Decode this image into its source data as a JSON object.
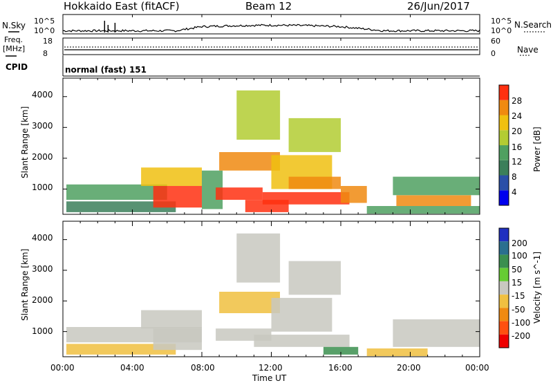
{
  "header": {
    "station": "Hokkaido East (fitACF)",
    "beam": "Beam 12",
    "date": "26/Jun/2017"
  },
  "strip": {
    "nsky_label": "N.Sky",
    "nsky_ticks": [
      "10^5",
      "10^0"
    ],
    "nsearch_label": "N.Search",
    "nsearch_ticks": [
      "10^5",
      "10^0"
    ],
    "freq_label_1": "Freq.",
    "freq_label_2": "[MHz]",
    "freq_ticks": [
      "18",
      "8"
    ],
    "nave_label": "Nave",
    "nave_ticks": [
      "60",
      "0"
    ],
    "cpid_label": "CPID",
    "cpid_value": "normal (fast) 151"
  },
  "chart_data": [
    {
      "type": "heatmap",
      "parameter": "Power",
      "ylabel": "Slant Range [km]",
      "yticks": [
        1000,
        2000,
        3000,
        4000
      ],
      "ylim": [
        180,
        4600
      ],
      "colorbar_label": "Power [dB]",
      "colorbar_ticks": [
        4,
        8,
        12,
        16,
        20,
        24,
        28
      ],
      "colorbar_range": [
        0,
        32
      ],
      "colorbar_colors": [
        "#0000ee",
        "#2a4fa8",
        "#3b7f5a",
        "#4fa060",
        "#b3cc33",
        "#f0c010",
        "#f08a10",
        "#ff3010"
      ],
      "regions": [
        {
          "t": [
            0.2,
            6.0
          ],
          "r": [
            650,
            1150
          ],
          "level": 14
        },
        {
          "t": [
            0.2,
            6.5
          ],
          "r": [
            250,
            600
          ],
          "level": 10
        },
        {
          "t": [
            5.2,
            8.0
          ],
          "r": [
            400,
            1100
          ],
          "level": 28
        },
        {
          "t": [
            4.5,
            8.0
          ],
          "r": [
            1100,
            1700
          ],
          "level": 22
        },
        {
          "t": [
            8.0,
            9.2
          ],
          "r": [
            350,
            1600
          ],
          "level": 12
        },
        {
          "t": [
            8.8,
            11.5
          ],
          "r": [
            650,
            1050
          ],
          "level": 28
        },
        {
          "t": [
            9.0,
            12.5
          ],
          "r": [
            1600,
            2200
          ],
          "level": 24
        },
        {
          "t": [
            10.5,
            13.0
          ],
          "r": [
            250,
            650
          ],
          "level": 28
        },
        {
          "t": [
            11.5,
            16.5
          ],
          "r": [
            500,
            900
          ],
          "level": 28
        },
        {
          "t": [
            12.0,
            15.5
          ],
          "r": [
            1000,
            2100
          ],
          "level": 22
        },
        {
          "t": [
            13.0,
            16.0
          ],
          "r": [
            1000,
            1400
          ],
          "level": 26
        },
        {
          "t": [
            16.0,
            17.5
          ],
          "r": [
            550,
            1100
          ],
          "level": 26
        },
        {
          "t": [
            17.5,
            24.0
          ],
          "r": [
            200,
            450
          ],
          "level": 12
        },
        {
          "t": [
            19.2,
            23.5
          ],
          "r": [
            450,
            800
          ],
          "level": 24
        },
        {
          "t": [
            19.0,
            24.0
          ],
          "r": [
            800,
            1400
          ],
          "level": 14
        },
        {
          "t": [
            10.0,
            12.5
          ],
          "r": [
            2600,
            4200
          ],
          "level": 16
        },
        {
          "t": [
            13.0,
            16.0
          ],
          "r": [
            2200,
            3300
          ],
          "level": 18
        }
      ]
    },
    {
      "type": "heatmap",
      "parameter": "Velocity",
      "ylabel": "Slant Range [km]",
      "yticks": [
        1000,
        2000,
        3000,
        4000
      ],
      "ylim": [
        180,
        4600
      ],
      "xlabel": "Time UT",
      "xticks": [
        "00:00",
        "04:00",
        "08:00",
        "12:00",
        "16:00",
        "20:00",
        "00:00"
      ],
      "xlim": [
        0,
        24
      ],
      "colorbar_label": "Velocity [m s^-1]",
      "colorbar_ticks": [
        "200",
        "100",
        "50",
        "15",
        "-15",
        "-50",
        "-100",
        "-200"
      ],
      "colorbar_colors": [
        "#2030c0",
        "#2a6f8f",
        "#3b8f4f",
        "#66cc33",
        "#c8c8c0",
        "#f0c040",
        "#f08a10",
        "#ff5010",
        "#ee0000"
      ],
      "regions": [
        {
          "t": [
            0.2,
            8.0
          ],
          "r": [
            650,
            1150
          ],
          "level": 0
        },
        {
          "t": [
            0.2,
            6.5
          ],
          "r": [
            250,
            600
          ],
          "level": -20
        },
        {
          "t": [
            5.2,
            8.0
          ],
          "r": [
            400,
            1100
          ],
          "level": 0
        },
        {
          "t": [
            4.5,
            8.0
          ],
          "r": [
            1100,
            1700
          ],
          "level": 0
        },
        {
          "t": [
            8.8,
            12.0
          ],
          "r": [
            700,
            1100
          ],
          "level": 0
        },
        {
          "t": [
            9.0,
            12.5
          ],
          "r": [
            1600,
            2300
          ],
          "level": -20
        },
        {
          "t": [
            11.0,
            16.5
          ],
          "r": [
            500,
            900
          ],
          "level": 0
        },
        {
          "t": [
            12.0,
            15.5
          ],
          "r": [
            1000,
            2100
          ],
          "level": 0
        },
        {
          "t": [
            15.0,
            17.0
          ],
          "r": [
            250,
            500
          ],
          "level": 40
        },
        {
          "t": [
            17.5,
            21.0
          ],
          "r": [
            200,
            450
          ],
          "level": -20
        },
        {
          "t": [
            19.0,
            24.0
          ],
          "r": [
            500,
            1400
          ],
          "level": 0
        },
        {
          "t": [
            10.0,
            12.5
          ],
          "r": [
            2600,
            4200
          ],
          "level": 0
        },
        {
          "t": [
            13.0,
            16.0
          ],
          "r": [
            2200,
            3300
          ],
          "level": 0
        }
      ]
    }
  ]
}
